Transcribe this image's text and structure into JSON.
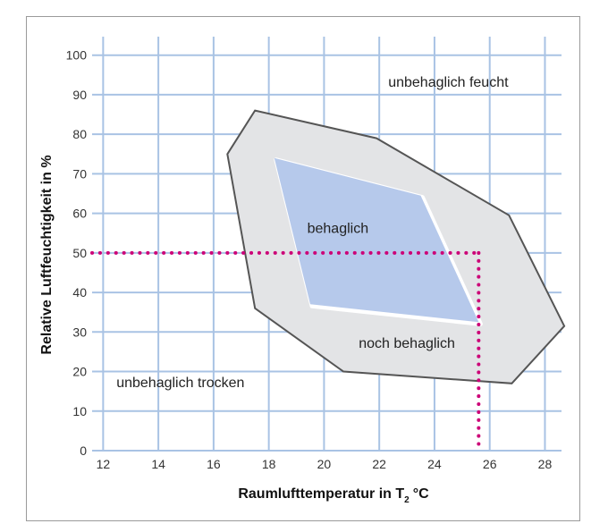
{
  "chart_data": {
    "type": "area",
    "xlabel": "Raumlufttemperatur in T",
    "xlabel_subscript": "2",
    "xlabel_unit": "°C",
    "ylabel": "Relative Luftfeuchtigkeit in %",
    "xlim": [
      11.6,
      28.6
    ],
    "ylim": [
      0,
      104
    ],
    "x_ticks": [
      12,
      14,
      16,
      18,
      20,
      22,
      24,
      26,
      28
    ],
    "y_ticks": [
      0,
      10,
      20,
      30,
      40,
      50,
      60,
      70,
      80,
      90,
      100
    ],
    "x_tick_labels": [
      "12",
      "14",
      "16",
      "18",
      "20",
      "22",
      "24",
      "26",
      "28"
    ],
    "y_tick_labels": [
      "0",
      "10",
      "20",
      "30",
      "40",
      "50",
      "60",
      "70",
      "80",
      "90",
      "100"
    ],
    "grid": true,
    "series": [
      {
        "color": "#e3e4e6",
        "points": [
          [
            17.5,
            86
          ],
          [
            21.9,
            79
          ],
          [
            26.7,
            59.5
          ],
          [
            28.7,
            31.5
          ],
          [
            26.8,
            17
          ],
          [
            20.7,
            20
          ],
          [
            17.5,
            36
          ],
          [
            16.5,
            75
          ]
        ]
      },
      {
        "color": "#b6c9eb",
        "points": [
          [
            18.2,
            74
          ],
          [
            23.5,
            64.5
          ],
          [
            25.6,
            32.5
          ],
          [
            19.5,
            37
          ]
        ]
      }
    ],
    "annotations": [
      {
        "text": "unbehaglich feucht",
        "x": 24.5,
        "y": 92
      },
      {
        "text": "behaglich",
        "x": 20.5,
        "y": 55
      },
      {
        "text": "noch behaglich",
        "x": 23.0,
        "y": 26
      },
      {
        "text": "unbehaglich trocken",
        "x": 14.8,
        "y": 16
      }
    ],
    "reference_point": {
      "x": 25.6,
      "y": 50,
      "color": "#cc0077"
    }
  }
}
